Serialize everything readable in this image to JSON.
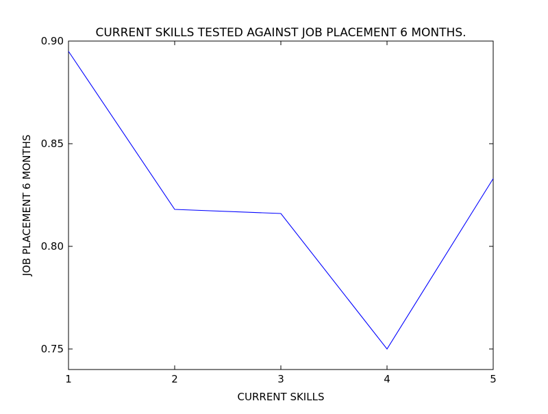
{
  "chart_data": {
    "type": "line",
    "title": "CURRENT SKILLS TESTED AGAINST JOB PLACEMENT 6 MONTHS.",
    "xlabel": "CURRENT SKILLS",
    "ylabel": "JOB PLACEMENT 6 MONTHS",
    "xlim": [
      1,
      5
    ],
    "ylim": [
      0.74,
      0.9
    ],
    "x_ticks": [
      1,
      2,
      3,
      4,
      5
    ],
    "x_tick_labels": [
      "1",
      "2",
      "3",
      "4",
      "5"
    ],
    "y_ticks": [
      0.75,
      0.8,
      0.85,
      0.9
    ],
    "y_tick_labels": [
      "0.75",
      "0.80",
      "0.85",
      "0.90"
    ],
    "grid": false,
    "series": [
      {
        "x": [
          1,
          2,
          3,
          4,
          5
        ],
        "y": [
          0.895,
          0.818,
          0.816,
          0.75,
          0.833
        ],
        "color": "#0000ff"
      }
    ]
  }
}
